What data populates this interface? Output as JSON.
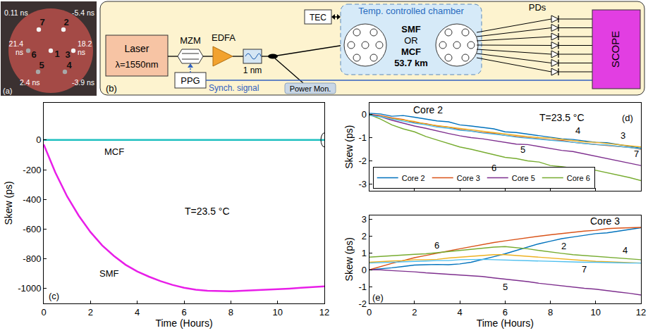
{
  "figure": {
    "photo": {
      "label": "(a)",
      "cores": [
        {
          "id": "1"
        },
        {
          "id": "2",
          "delay": "-5.4 ns"
        },
        {
          "id": "3",
          "delay": "18.2 ns"
        },
        {
          "id": "4",
          "delay": "-3.9 ns"
        },
        {
          "id": "5",
          "delay": "2.4 ns"
        },
        {
          "id": "6",
          "delay": "21.4 ns"
        },
        {
          "id": "7",
          "delay": "0.11 ns"
        }
      ]
    },
    "setup": {
      "label": "(b)",
      "laser": {
        "name": "Laser",
        "wavelength": "λ=1550nm"
      },
      "modulator": "MZM",
      "amplifier": "EDFA",
      "filter": "1 nm",
      "generator": "PPG",
      "sync": "Synch. signal",
      "monitor": "Power Mon.",
      "tec": "TEC",
      "chamber": "Temp. controlled chamber",
      "fibers": [
        "SMF",
        "OR",
        "MCF",
        "53.7 km"
      ],
      "detectors": "PDs",
      "scope": "SCOPE"
    }
  },
  "chart_data": [
    {
      "type": "line",
      "x_label": "Time (Hours)",
      "y_label": "Skew (ps)",
      "x": [
        0,
        0.5,
        1,
        1.5,
        2,
        2.5,
        3,
        3.5,
        4,
        4.5,
        5,
        5.5,
        6,
        6.5,
        7,
        7.5,
        8,
        8.5,
        9,
        9.5,
        10,
        10.5,
        11,
        11.5,
        12
      ],
      "series": [
        {
          "color": "#1fc0c0",
          "values": [
            0,
            0,
            0,
            0,
            0,
            0,
            0,
            0,
            0,
            0,
            0,
            0,
            0,
            0,
            0,
            0,
            0,
            0,
            0,
            0,
            0,
            0,
            0,
            0,
            0
          ]
        },
        {
          "color": "#e81ee8",
          "values": [
            -30,
            -220,
            -380,
            -510,
            -620,
            -710,
            -780,
            -840,
            -885,
            -920,
            -950,
            -975,
            -995,
            -1008,
            -1015,
            -1018,
            -1018,
            -1015,
            -1012,
            -1008,
            -1004,
            -1000,
            -995,
            -990,
            -985
          ]
        }
      ],
      "xlim": [
        0,
        12
      ],
      "xticks": [
        0,
        2,
        4,
        6,
        8,
        10,
        12
      ],
      "ylim": [
        -1100,
        250
      ],
      "yticks": [
        -1000,
        -800,
        -600,
        -400,
        -200,
        0
      ],
      "grid": false,
      "annotations": [
        "MCF",
        "SMF",
        "T=23.5 °C",
        "(c)"
      ]
    },
    {
      "type": "line",
      "y_label": "Skew (ps)",
      "x": [
        0,
        0.5,
        1,
        1.5,
        2,
        2.5,
        3,
        3.5,
        4,
        4.5,
        5,
        5.5,
        6,
        6.5,
        7,
        7.5,
        8,
        8.5,
        9,
        9.5,
        10,
        10.5,
        11,
        11.5,
        12
      ],
      "series": [
        {
          "name": "Core 2",
          "color": "#0072bd",
          "values": [
            0.05,
            0.02,
            -0.08,
            -0.05,
            -0.12,
            -0.2,
            -0.28,
            -0.32,
            -0.45,
            -0.5,
            -0.55,
            -0.62,
            -0.75,
            -0.78,
            -0.85,
            -0.92,
            -1.0,
            -1.05,
            -1.08,
            -1.15,
            -1.2,
            -1.22,
            -1.3,
            -1.38,
            -1.45
          ]
        },
        {
          "name": "Core 3",
          "color": "#d95319",
          "values": [
            0,
            -0.05,
            -0.15,
            -0.22,
            -0.35,
            -0.4,
            -0.5,
            -0.55,
            -0.65,
            -0.72,
            -0.78,
            -0.82,
            -0.9,
            -0.95,
            -1.0,
            -1.05,
            -1.1,
            -1.12,
            -1.2,
            -1.25,
            -1.3,
            -1.35,
            -1.38,
            -1.42,
            -1.5
          ]
        },
        {
          "color": "#edb120",
          "values": [
            -0.02,
            -0.08,
            -0.18,
            -0.25,
            -0.3,
            -0.42,
            -0.48,
            -0.55,
            -0.6,
            -0.68,
            -0.72,
            -0.8,
            -0.85,
            -0.9,
            -0.95,
            -1.0,
            -1.02,
            -1.08,
            -1.12,
            -1.18,
            -1.2,
            -1.25,
            -1.3,
            -1.35,
            -1.4
          ]
        },
        {
          "name": "Core 5",
          "color": "#7e2f8e",
          "values": [
            0,
            -0.1,
            -0.25,
            -0.38,
            -0.5,
            -0.6,
            -0.72,
            -0.82,
            -0.92,
            -1.0,
            -1.05,
            -1.12,
            -1.2,
            -1.28,
            -1.3,
            -1.38,
            -1.45,
            -1.55,
            -1.6,
            -1.7,
            -1.8,
            -1.9,
            -2.0,
            -2.1,
            -2.2
          ]
        },
        {
          "name": "Core 6",
          "color": "#77ac30",
          "values": [
            0,
            -0.2,
            -0.45,
            -0.62,
            -0.75,
            -0.95,
            -1.1,
            -1.25,
            -1.4,
            -1.5,
            -1.62,
            -1.72,
            -1.85,
            -1.9,
            -2.0,
            -2.05,
            -2.2,
            -2.25,
            -2.32,
            -2.3,
            -2.4,
            -2.5,
            -2.6,
            -2.72,
            -2.85
          ]
        },
        {
          "color": "#4dbeee",
          "values": [
            -0.05,
            -0.1,
            -0.2,
            -0.3,
            -0.38,
            -0.45,
            -0.55,
            -0.6,
            -0.68,
            -0.72,
            -0.8,
            -0.85,
            -0.9,
            -0.98,
            -1.02,
            -1.08,
            -1.12,
            -1.15,
            -1.2,
            -1.25,
            -1.3,
            -1.32,
            -1.38,
            -1.42,
            -1.48
          ]
        }
      ],
      "xlim": [
        0,
        12
      ],
      "xticks": [
        0,
        2,
        4,
        6,
        8,
        10,
        12
      ],
      "ylim": [
        -3.3,
        0.5
      ],
      "yticks": [
        -3,
        -2,
        -1,
        0
      ],
      "grid": false,
      "tick_labels": "y",
      "legend": "lower left",
      "annotations": [
        "Core 2",
        "4",
        "3",
        "7",
        "5",
        "6",
        "T=23.5 °C",
        "(d)"
      ]
    },
    {
      "type": "line",
      "x_label": "Time (Hours)",
      "y_label": "Skew (ps)",
      "x": [
        0,
        0.5,
        1,
        1.5,
        2,
        2.5,
        3,
        3.5,
        4,
        4.5,
        5,
        5.5,
        6,
        6.5,
        7,
        7.5,
        8,
        8.5,
        9,
        9.5,
        10,
        10.5,
        11,
        11.5,
        12
      ],
      "series": [
        {
          "color": "#0072bd",
          "values": [
            0,
            0.05,
            0.12,
            0.2,
            0.28,
            0.3,
            0.32,
            0.3,
            0.35,
            0.45,
            0.6,
            0.78,
            0.95,
            1.15,
            1.35,
            1.55,
            1.7,
            1.85,
            1.95,
            2.05,
            2.15,
            2.2,
            2.3,
            2.4,
            2.5
          ]
        },
        {
          "color": "#d95319",
          "values": [
            0,
            0.2,
            0.38,
            0.55,
            0.72,
            0.85,
            1.0,
            1.12,
            1.25,
            1.38,
            1.5,
            1.62,
            1.72,
            1.82,
            1.9,
            2.0,
            2.08,
            2.15,
            2.25,
            2.3,
            2.35,
            2.45,
            2.48,
            2.5,
            2.52
          ]
        },
        {
          "color": "#edb120",
          "values": [
            0.45,
            0.5,
            0.52,
            0.55,
            0.6,
            0.6,
            0.62,
            0.7,
            0.75,
            0.8,
            0.88,
            0.9,
            0.9,
            0.85,
            0.8,
            0.72,
            0.68,
            0.62,
            0.58,
            0.52,
            0.5,
            0.48,
            0.45,
            0.42,
            0.4
          ]
        },
        {
          "color": "#7e2f8e",
          "values": [
            0,
            0,
            -0.05,
            -0.08,
            -0.12,
            -0.18,
            -0.22,
            -0.28,
            -0.32,
            -0.35,
            -0.4,
            -0.48,
            -0.55,
            -0.62,
            -0.7,
            -0.8,
            -0.88,
            -0.95,
            -1.02,
            -1.1,
            -1.15,
            -1.25,
            -1.32,
            -1.4,
            -1.5
          ]
        },
        {
          "color": "#77ac30",
          "values": [
            0.75,
            0.8,
            0.85,
            0.9,
            0.92,
            0.95,
            1.02,
            1.08,
            1.15,
            1.22,
            1.3,
            1.35,
            1.38,
            1.32,
            1.25,
            1.15,
            1.05,
            0.98,
            0.9,
            0.85,
            0.8,
            0.72,
            0.68,
            0.65,
            0.6
          ]
        },
        {
          "color": "#4dbeee",
          "values": [
            0.4,
            0.42,
            0.45,
            0.48,
            0.5,
            0.52,
            0.55,
            0.55,
            0.6,
            0.62,
            0.62,
            0.6,
            0.58,
            0.55,
            0.55,
            0.52,
            0.5,
            0.5,
            0.48,
            0.45,
            0.45,
            0.42,
            0.42,
            0.4,
            0.4
          ]
        }
      ],
      "xlim": [
        0,
        12
      ],
      "xticks": [
        0,
        2,
        4,
        6,
        8,
        10,
        12
      ],
      "ylim": [
        -2,
        3.25
      ],
      "yticks": [
        -2,
        -1,
        0,
        1,
        2,
        3
      ],
      "grid": false,
      "annotations": [
        "Core 3",
        "2",
        "6",
        "4",
        "7",
        "5",
        "(e)"
      ]
    }
  ]
}
